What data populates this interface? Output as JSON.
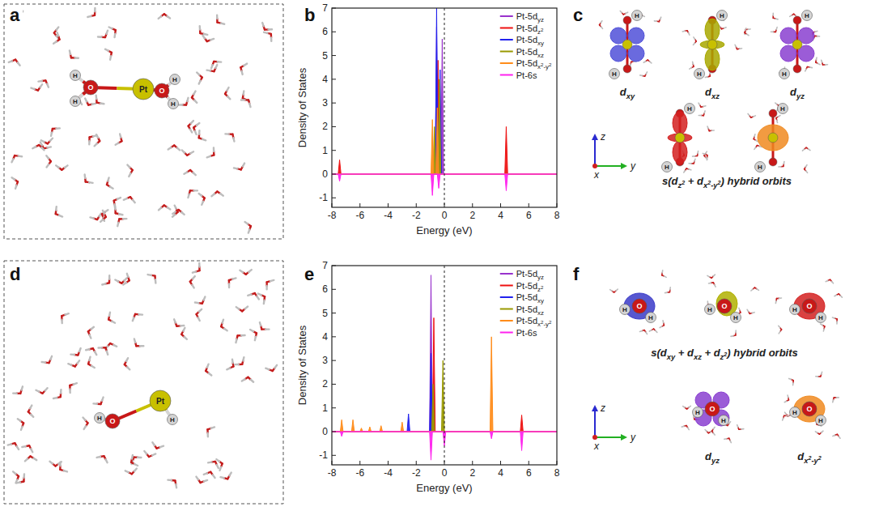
{
  "panel_letters": [
    "a",
    "b",
    "c",
    "d",
    "e",
    "f"
  ],
  "structures": [
    {
      "atoms": [
        "H",
        "H",
        "O",
        "Pt",
        "O",
        "H",
        "H"
      ]
    },
    {
      "atoms": [
        "H",
        "O",
        "Pt",
        "H"
      ]
    }
  ],
  "chart_data": [
    {
      "type": "area",
      "xlabel": "Energy (eV)",
      "ylabel": "Density of States",
      "xlim": [
        -8,
        8
      ],
      "ylim": [
        -1.4,
        7
      ],
      "xticks": [
        -8,
        -6,
        -4,
        -2,
        0,
        2,
        4,
        6,
        8
      ],
      "yticks": [
        -1,
        0,
        1,
        2,
        3,
        4,
        5,
        6,
        7
      ],
      "vline": 0,
      "legend": "upper right",
      "series": [
        {
          "name": "Pt-5dyz",
          "color": "#9933cc",
          "x": [
            -8,
            -0.65,
            -0.55,
            -0.45,
            -0.25,
            -0.15,
            -0.05,
            8
          ],
          "values": [
            0,
            0,
            6.2,
            0,
            0,
            5.7,
            0,
            0
          ]
        },
        {
          "name": "Pt-5dz2",
          "color": "#ee1111",
          "x": [
            -8,
            -7.55,
            -7.45,
            -7.35,
            -0.55,
            -0.45,
            -0.35,
            4.3,
            4.4,
            4.5,
            8
          ],
          "values": [
            0,
            0,
            0.6,
            0,
            0,
            4.8,
            0,
            0,
            2.0,
            0,
            0
          ]
        },
        {
          "name": "Pt-5dxy",
          "color": "#2222ee",
          "x": [
            -8,
            -0.65,
            -0.55,
            -0.45,
            -0.4,
            -0.3,
            -0.2,
            8
          ],
          "values": [
            0,
            0,
            7.0,
            0,
            0,
            4.4,
            0,
            0
          ]
        },
        {
          "name": "Pt-5dxz",
          "color": "#999900",
          "x": [
            -8,
            -0.8,
            -0.7,
            -0.6,
            -0.45,
            -0.35,
            -0.25,
            8
          ],
          "values": [
            0,
            0,
            2.0,
            0,
            0,
            4.0,
            0,
            0
          ]
        },
        {
          "name": "Pt-5dx2-y2",
          "color": "#ff8c1a",
          "x": [
            -8,
            -0.95,
            -0.85,
            -0.75,
            -0.6,
            -0.5,
            -0.4,
            8
          ],
          "values": [
            0,
            0,
            2.3,
            0,
            0,
            2.8,
            0,
            0
          ]
        },
        {
          "name": "Pt-6s",
          "color": "#ff22ee",
          "x": [
            -8,
            -7.55,
            -7.45,
            -7.35,
            -0.95,
            -0.85,
            -0.75,
            -0.5,
            -0.4,
            -0.3,
            4.3,
            4.4,
            4.5,
            8
          ],
          "values": [
            0,
            0,
            -0.3,
            0,
            0,
            -0.9,
            0,
            0,
            -0.6,
            0,
            0,
            -0.7,
            0,
            0
          ]
        }
      ]
    },
    {
      "type": "area",
      "xlabel": "Energy (eV)",
      "ylabel": "Density of States",
      "xlim": [
        -8,
        8
      ],
      "ylim": [
        -1.4,
        7
      ],
      "xticks": [
        -8,
        -6,
        -4,
        -2,
        0,
        2,
        4,
        6,
        8
      ],
      "yticks": [
        -1,
        0,
        1,
        2,
        3,
        4,
        5,
        6,
        7
      ],
      "vline": 0,
      "legend": "upper right",
      "series": [
        {
          "name": "Pt-5dyz",
          "color": "#9933cc",
          "x": [
            -8,
            -1.05,
            -0.95,
            -0.85,
            8
          ],
          "values": [
            0,
            0,
            6.6,
            0,
            0
          ]
        },
        {
          "name": "Pt-5dz2",
          "color": "#ee1111",
          "x": [
            -8,
            -0.85,
            -0.75,
            -0.65,
            5.4,
            5.5,
            5.6,
            8
          ],
          "values": [
            0,
            0,
            4.8,
            0,
            0,
            0.7,
            0,
            0
          ]
        },
        {
          "name": "Pt-5dxy",
          "color": "#2222ee",
          "x": [
            -8,
            -2.65,
            -2.55,
            -2.45,
            -1.05,
            -0.95,
            -0.85,
            8
          ],
          "values": [
            0,
            0,
            0.75,
            0,
            0,
            3.3,
            0,
            0
          ]
        },
        {
          "name": "Pt-5dxz",
          "color": "#999900",
          "x": [
            -8,
            -0.9,
            -0.8,
            -0.7,
            -0.2,
            -0.1,
            0,
            8
          ],
          "values": [
            0,
            0,
            2.0,
            0,
            0,
            3.0,
            0,
            0
          ]
        },
        {
          "name": "Pt-5dx2-y2",
          "color": "#ff8c1a",
          "x": [
            -8,
            -7.4,
            -7.3,
            -7.2,
            -6.6,
            -6.5,
            -6.4,
            -6.0,
            -5.9,
            -5.8,
            -5.4,
            -5.3,
            -5.2,
            -4.6,
            -4.5,
            -4.4,
            -3.1,
            -3.0,
            -2.9,
            3.25,
            3.35,
            3.45,
            8
          ],
          "values": [
            0,
            0,
            0.5,
            0,
            0,
            0.5,
            0,
            0,
            0.15,
            0,
            0,
            0.2,
            0,
            0,
            0.25,
            0,
            0,
            0.4,
            0,
            0,
            4.0,
            0,
            0
          ]
        },
        {
          "name": "Pt-6s",
          "color": "#ff22ee",
          "x": [
            -8,
            -7.4,
            -7.3,
            -7.2,
            -1.05,
            -0.95,
            -0.85,
            -0.1,
            0,
            0.1,
            3.25,
            3.35,
            3.45,
            5.4,
            5.5,
            5.6,
            8
          ],
          "values": [
            0,
            0,
            -0.2,
            0,
            0,
            -1.2,
            0,
            0,
            -0.6,
            0,
            0,
            -0.3,
            0,
            0,
            -0.8,
            0,
            0
          ]
        }
      ]
    }
  ],
  "orbital_panels": [
    {
      "thumbnail_atoms": [
        "H",
        "H"
      ],
      "single": [
        {
          "label": "dxy",
          "color": "#5050d8"
        },
        {
          "label": "dxz",
          "color": "#a8a800"
        },
        {
          "label": "dyz",
          "color": "#8a3fd0"
        }
      ],
      "hybrid": {
        "label": "s(dz2 + dx2-y2) hybrid orbits",
        "colors": [
          "#d42020",
          "#f08a20"
        ]
      }
    },
    {
      "thumbnail_atoms": [
        "H",
        "O",
        "H"
      ],
      "hybrid": {
        "label": "s(dxy + dxz + dz2) hybrid orbits",
        "colors": [
          "#3a3ac8",
          "#b0b000",
          "#d42020"
        ]
      },
      "single": [
        {
          "label": "dyz",
          "color": "#8a3fd0"
        },
        {
          "label": "dx2-y2",
          "color": "#f08a20"
        }
      ]
    }
  ],
  "axes_triad": [
    "z",
    "y",
    "x"
  ]
}
